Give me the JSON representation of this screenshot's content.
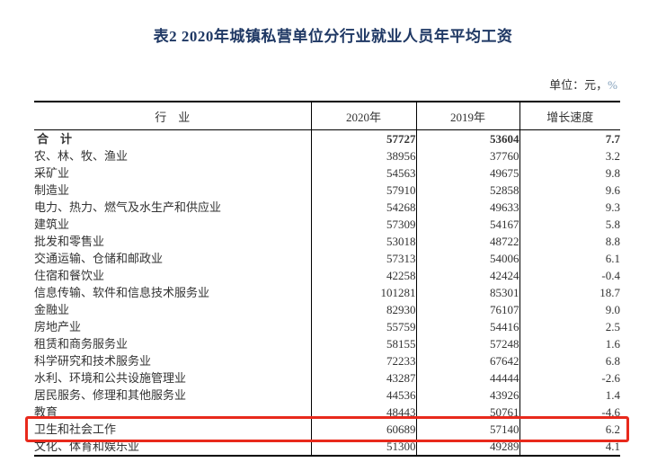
{
  "page": {
    "title": "表2 2020年城镇私营单位分行业就业人员年平均工资",
    "unit_prefix": "单位：元，",
    "unit_percent": "%"
  },
  "table": {
    "headers": [
      "行　业",
      "2020年",
      "2019年",
      "增长速度"
    ],
    "rows": [
      {
        "industry": "合　计",
        "y2020": "57727",
        "y2019": "53604",
        "growth": "7.7",
        "is_total": true
      },
      {
        "industry": "农、林、牧、渔业",
        "y2020": "38956",
        "y2019": "37760",
        "growth": "3.2"
      },
      {
        "industry": "采矿业",
        "y2020": "54563",
        "y2019": "49675",
        "growth": "9.8"
      },
      {
        "industry": "制造业",
        "y2020": "57910",
        "y2019": "52858",
        "growth": "9.6"
      },
      {
        "industry": "电力、热力、燃气及水生产和供应业",
        "y2020": "54268",
        "y2019": "49633",
        "growth": "9.3"
      },
      {
        "industry": "建筑业",
        "y2020": "57309",
        "y2019": "54167",
        "growth": "5.8"
      },
      {
        "industry": "批发和零售业",
        "y2020": "53018",
        "y2019": "48722",
        "growth": "8.8"
      },
      {
        "industry": "交通运输、仓储和邮政业",
        "y2020": "57313",
        "y2019": "54006",
        "growth": "6.1"
      },
      {
        "industry": "住宿和餐饮业",
        "y2020": "42258",
        "y2019": "42424",
        "growth": "-0.4"
      },
      {
        "industry": "信息传输、软件和信息技术服务业",
        "y2020": "101281",
        "y2019": "85301",
        "growth": "18.7"
      },
      {
        "industry": "金融业",
        "y2020": "82930",
        "y2019": "76107",
        "growth": "9.0"
      },
      {
        "industry": "房地产业",
        "y2020": "55759",
        "y2019": "54416",
        "growth": "2.5"
      },
      {
        "industry": "租赁和商务服务业",
        "y2020": "58155",
        "y2019": "57248",
        "growth": "1.6"
      },
      {
        "industry": "科学研究和技术服务业",
        "y2020": "72233",
        "y2019": "67642",
        "growth": "6.8"
      },
      {
        "industry": "水利、环境和公共设施管理业",
        "y2020": "43287",
        "y2019": "44444",
        "growth": "-2.6"
      },
      {
        "industry": "居民服务、修理和其他服务业",
        "y2020": "44536",
        "y2019": "43926",
        "growth": "1.4"
      },
      {
        "industry": "教育",
        "y2020": "48443",
        "y2019": "50761",
        "growth": "-4.6"
      },
      {
        "industry": "卫生和社会工作",
        "y2020": "60689",
        "y2019": "57140",
        "growth": "6.2",
        "highlighted": true
      },
      {
        "industry": "文化、体育和娱乐业",
        "y2020": "51300",
        "y2019": "49289",
        "growth": "4.1"
      }
    ]
  },
  "colors": {
    "title": "#1f3864",
    "text": "#333333",
    "percent_accent": "#7f9db9",
    "table_line": "#000000",
    "highlight_border": "#e8291c"
  }
}
